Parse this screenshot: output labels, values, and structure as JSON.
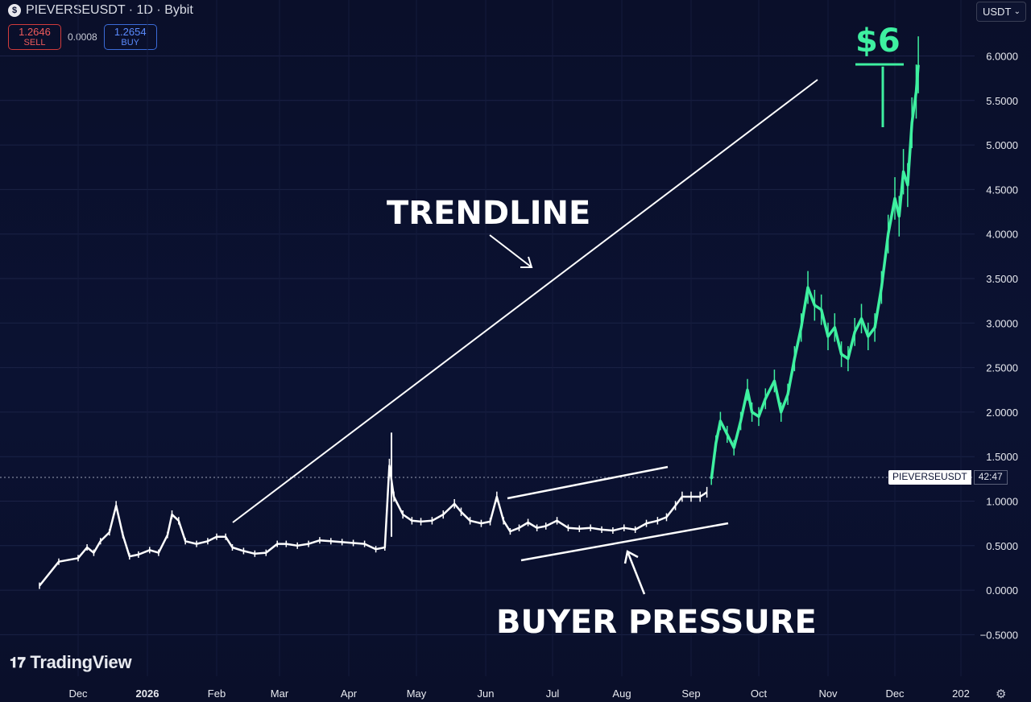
{
  "header": {
    "title": "PIEVERSEUSDT · 1D · Bybit",
    "logo_icon": "coin-logo-icon"
  },
  "trade": {
    "sell_price": "1.2646",
    "sell_label": "SELL",
    "spread": "0.0008",
    "buy_price": "1.2654",
    "buy_label": "BUY"
  },
  "currency_selector": {
    "value": "USDT",
    "icon": "chevron-down-icon"
  },
  "price_tag": {
    "symbol": "PIEVERSEUSDT",
    "countdown": "42:47"
  },
  "annotations": {
    "target": "$6",
    "trendline": "TRENDLINE",
    "buyer_pressure": "BUYER PRESSURE"
  },
  "branding": {
    "name": "TradingView",
    "icon": "tradingview-logo-icon"
  },
  "settings_icon": "gear-icon",
  "colors": {
    "background": "#0a0f2a",
    "candle_old": "#ffffff",
    "candle_new": "#3ef0a0",
    "sell": "#f05b5b",
    "buy": "#5b8cff"
  },
  "chart_data": {
    "type": "line",
    "x_ticks": [
      "Dec",
      "2026",
      "Feb",
      "Mar",
      "Apr",
      "May",
      "Jun",
      "Jul",
      "Aug",
      "Sep",
      "Oct",
      "Nov",
      "Dec",
      "202"
    ],
    "y_ticks": [
      "6.0000",
      "5.5000",
      "5.0000",
      "4.5000",
      "4.0000",
      "3.5000",
      "3.0000",
      "2.5000",
      "2.0000",
      "1.5000",
      "1.0000",
      "0.5000",
      "0.0000",
      "−0.5000"
    ],
    "ylim": [
      -0.5,
      6.0
    ],
    "grid": true,
    "last_price": 1.265,
    "series": [
      {
        "values": [
          [
            "2025-11-25",
            0.05
          ],
          [
            "2025-11-28",
            0.32
          ],
          [
            "2025-12-01",
            0.36
          ],
          [
            "2025-12-05",
            0.48
          ],
          [
            "2025-12-08",
            0.42
          ],
          [
            "2025-12-11",
            0.55
          ],
          [
            "2025-12-15",
            0.65
          ],
          [
            "2025-12-18",
            0.95
          ],
          [
            "2025-12-21",
            0.62
          ],
          [
            "2025-12-24",
            0.38
          ],
          [
            "2025-12-28",
            0.4
          ],
          [
            "2026-01-02",
            0.45
          ],
          [
            "2026-01-06",
            0.42
          ],
          [
            "2026-01-10",
            0.62
          ],
          [
            "2026-01-12",
            0.85
          ],
          [
            "2026-01-15",
            0.78
          ],
          [
            "2026-01-18",
            0.55
          ],
          [
            "2026-01-23",
            0.52
          ],
          [
            "2026-01-28",
            0.55
          ],
          [
            "2026-02-01",
            0.6
          ],
          [
            "2026-02-05",
            0.6
          ],
          [
            "2026-02-08",
            0.48
          ],
          [
            "2026-02-13",
            0.44
          ],
          [
            "2026-02-18",
            0.41
          ],
          [
            "2026-02-23",
            0.42
          ],
          [
            "2026-02-28",
            0.52
          ],
          [
            "2026-03-04",
            0.52
          ],
          [
            "2026-03-09",
            0.5
          ],
          [
            "2026-03-14",
            0.52
          ],
          [
            "2026-03-19",
            0.56
          ],
          [
            "2026-03-24",
            0.55
          ],
          [
            "2026-03-29",
            0.54
          ],
          [
            "2026-04-03",
            0.53
          ],
          [
            "2026-04-08",
            0.52
          ],
          [
            "2026-04-13",
            0.46
          ],
          [
            "2026-04-17",
            0.48
          ],
          [
            "2026-04-19",
            1.4
          ],
          [
            "2026-04-21",
            1.05
          ],
          [
            "2026-04-25",
            0.85
          ],
          [
            "2026-04-29",
            0.78
          ],
          [
            "2026-05-03",
            0.77
          ],
          [
            "2026-05-08",
            0.78
          ],
          [
            "2026-05-13",
            0.85
          ],
          [
            "2026-05-18",
            0.97
          ],
          [
            "2026-05-21",
            0.88
          ],
          [
            "2026-05-25",
            0.78
          ],
          [
            "2026-05-30",
            0.75
          ],
          [
            "2026-06-03",
            0.77
          ],
          [
            "2026-06-06",
            1.05
          ],
          [
            "2026-06-09",
            0.78
          ],
          [
            "2026-06-12",
            0.66
          ],
          [
            "2026-06-16",
            0.7
          ],
          [
            "2026-06-20",
            0.76
          ],
          [
            "2026-06-24",
            0.7
          ],
          [
            "2026-06-28",
            0.72
          ],
          [
            "2026-07-03",
            0.78
          ],
          [
            "2026-07-08",
            0.7
          ],
          [
            "2026-07-13",
            0.69
          ],
          [
            "2026-07-18",
            0.7
          ],
          [
            "2026-07-23",
            0.68
          ],
          [
            "2026-07-28",
            0.67
          ],
          [
            "2026-08-02",
            0.7
          ],
          [
            "2026-08-07",
            0.68
          ],
          [
            "2026-08-12",
            0.75
          ],
          [
            "2026-08-17",
            0.78
          ],
          [
            "2026-08-21",
            0.82
          ],
          [
            "2026-08-25",
            0.95
          ],
          [
            "2026-08-28",
            1.05
          ],
          [
            "2026-09-01",
            1.05
          ],
          [
            "2026-09-05",
            1.05
          ],
          [
            "2026-09-08",
            1.1
          ],
          [
            "2026-09-10",
            1.25
          ],
          [
            "2026-09-12",
            1.65
          ],
          [
            "2026-09-14",
            1.9
          ],
          [
            "2026-09-17",
            1.75
          ],
          [
            "2026-09-20",
            1.6
          ],
          [
            "2026-09-23",
            1.9
          ],
          [
            "2026-09-26",
            2.25
          ],
          [
            "2026-09-28",
            2.0
          ],
          [
            "2026-10-01",
            1.95
          ],
          [
            "2026-10-04",
            2.15
          ],
          [
            "2026-10-08",
            2.35
          ],
          [
            "2026-10-11",
            2.0
          ],
          [
            "2026-10-14",
            2.2
          ],
          [
            "2026-10-17",
            2.6
          ],
          [
            "2026-10-20",
            2.95
          ],
          [
            "2026-10-23",
            3.4
          ],
          [
            "2026-10-26",
            3.2
          ],
          [
            "2026-10-29",
            3.15
          ],
          [
            "2026-11-01",
            2.85
          ],
          [
            "2026-11-04",
            2.95
          ],
          [
            "2026-11-07",
            2.65
          ],
          [
            "2026-11-10",
            2.6
          ],
          [
            "2026-11-13",
            2.9
          ],
          [
            "2026-11-16",
            3.05
          ],
          [
            "2026-11-19",
            2.85
          ],
          [
            "2026-11-22",
            2.95
          ],
          [
            "2026-11-25",
            3.4
          ],
          [
            "2026-11-28",
            4.0
          ],
          [
            "2026-12-01",
            4.4
          ],
          [
            "2026-12-03",
            4.2
          ],
          [
            "2026-12-05",
            4.7
          ],
          [
            "2026-12-07",
            4.55
          ],
          [
            "2026-12-09",
            5.25
          ],
          [
            "2026-12-11",
            5.6
          ],
          [
            "2026-12-12",
            5.9
          ]
        ]
      }
    ]
  }
}
